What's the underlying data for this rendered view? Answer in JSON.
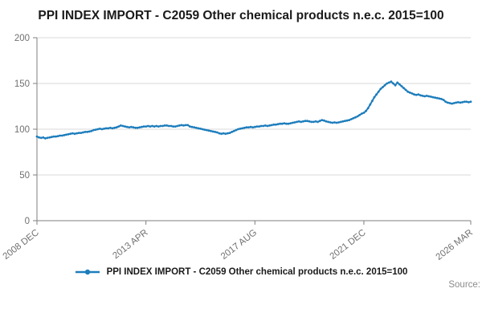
{
  "title": "PPI INDEX IMPORT - C2059 Other chemical products n.e.c. 2015=100",
  "legend": {
    "label": "PPI INDEX IMPORT - C2059 Other chemical products n.e.c. 2015=100"
  },
  "source_label": "Source:",
  "colors": {
    "line": "#1d7dbc",
    "grid": "#d9d9d9",
    "axis": "#7f7f7f",
    "tick_label": "#707070",
    "title": "#1a1a1a"
  },
  "chart_data": {
    "type": "line",
    "title": "PPI INDEX IMPORT - C2059 Other chemical products n.e.c. 2015=100",
    "xlabel": "",
    "ylabel": "",
    "ylim": [
      0,
      200
    ],
    "yticks": [
      0,
      50,
      100,
      150,
      200
    ],
    "grid": "horizontal",
    "legend_position": "bottom",
    "x_period": {
      "start": "2008 DEC",
      "end": "2026 MAR",
      "step": "monthly"
    },
    "xtick_labels": [
      "2008 DEC",
      "2013 APR",
      "2017 AUG",
      "2021 DEC",
      "2026 MAR"
    ],
    "xtick_indices": [
      0,
      52,
      104,
      156,
      207
    ],
    "series": [
      {
        "name": "PPI INDEX IMPORT - C2059 Other chemical products n.e.c. 2015=100",
        "values": [
          92,
          91,
          90.5,
          91,
          90,
          90.5,
          91,
          91.5,
          92,
          92,
          92.5,
          93,
          93,
          93.5,
          94,
          94.5,
          95,
          95.5,
          95,
          95.5,
          96,
          96,
          96.5,
          97,
          97,
          97.5,
          98,
          99,
          99.5,
          100,
          100.5,
          100,
          100.5,
          101,
          101,
          101.5,
          101,
          101.5,
          102,
          103,
          104,
          103.5,
          103,
          102.5,
          102,
          102.5,
          102,
          101.5,
          101.5,
          102,
          102.5,
          103,
          103,
          103.5,
          103,
          103.5,
          103,
          103.5,
          103,
          103.5,
          103.5,
          104,
          104,
          103.5,
          103.5,
          103,
          103,
          103.5,
          104,
          104.5,
          104,
          104.5,
          104.5,
          103,
          102.5,
          102,
          101.5,
          101,
          100.5,
          100,
          99.5,
          99,
          98.5,
          98,
          97.5,
          97,
          96.5,
          95.5,
          95,
          95.5,
          95,
          95.5,
          96,
          97,
          98,
          99,
          100,
          100.5,
          101,
          101.5,
          102,
          102,
          102.5,
          102,
          102.5,
          103,
          103,
          103.5,
          103.5,
          104,
          103.5,
          104,
          104.5,
          105,
          105,
          105.5,
          106,
          106,
          106.5,
          106,
          106,
          106.5,
          107,
          107.5,
          108,
          108.5,
          108,
          108.5,
          109,
          109,
          108.5,
          108,
          108,
          108.5,
          108,
          109,
          110,
          109.5,
          108.5,
          108,
          107.5,
          107,
          107.5,
          107,
          107.5,
          108,
          108.5,
          109,
          109.5,
          110,
          111,
          112,
          113,
          114,
          115.5,
          117,
          118,
          120,
          123,
          127,
          131,
          135,
          138,
          141,
          144,
          146,
          148,
          150,
          151,
          152,
          150,
          148,
          151,
          149,
          147,
          145,
          143,
          141,
          140,
          139,
          138,
          137.5,
          138,
          137,
          136.5,
          136,
          136.5,
          136,
          135.5,
          135,
          134.5,
          134,
          133.5,
          133,
          132,
          130,
          129,
          128.5,
          128,
          128.5,
          129,
          129.5,
          129,
          129.5,
          130,
          130,
          129.5,
          130
        ]
      }
    ]
  }
}
